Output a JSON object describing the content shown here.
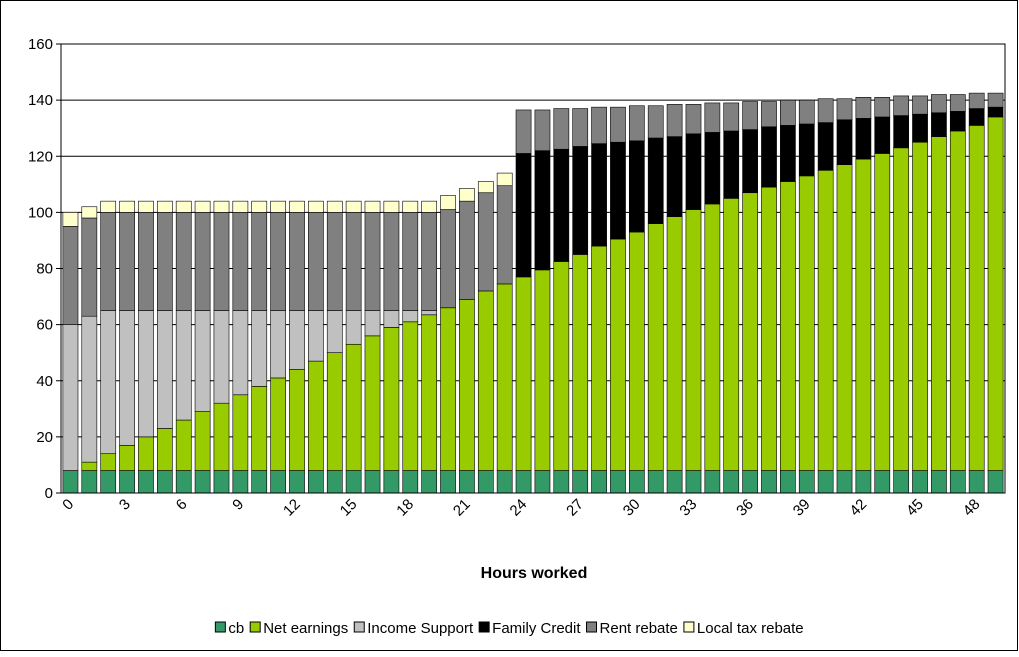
{
  "chart_data": {
    "type": "stacked-bar",
    "x_label": "Hours worked",
    "categories": [
      "0",
      null,
      null,
      "3",
      null,
      null,
      "6",
      null,
      null,
      "9",
      null,
      null,
      "12",
      null,
      null,
      "15",
      null,
      null,
      "18",
      null,
      null,
      "21",
      null,
      null,
      "24",
      null,
      null,
      "27",
      null,
      null,
      "30",
      null,
      null,
      "33",
      null,
      null,
      "36",
      null,
      null,
      "39",
      null,
      null,
      "42",
      null,
      null,
      "45",
      null,
      null,
      "48",
      null
    ],
    "ylim": [
      0,
      160
    ],
    "yticks": [
      0,
      20,
      40,
      60,
      80,
      100,
      120,
      140,
      160
    ],
    "grid": true,
    "legend": "bottom",
    "series": [
      {
        "name": "cb",
        "color": "#339966",
        "values": [
          8,
          8,
          8,
          8,
          8,
          8,
          8,
          8,
          8,
          8,
          8,
          8,
          8,
          8,
          8,
          8,
          8,
          8,
          8,
          8,
          8,
          8,
          8,
          8,
          8,
          8,
          8,
          8,
          8,
          8,
          8,
          8,
          8,
          8,
          8,
          8,
          8,
          8,
          8,
          8,
          8,
          8,
          8,
          8,
          8,
          8,
          8,
          8,
          8,
          8
        ]
      },
      {
        "name": "Net earnings",
        "color": "#99cc00",
        "values": [
          0,
          3,
          6,
          9,
          12,
          15,
          18,
          21,
          24,
          27,
          30,
          33,
          36,
          39,
          42,
          45,
          48,
          51,
          53,
          55.5,
          58,
          61,
          64,
          66.5,
          69,
          71.5,
          74.5,
          77,
          80,
          82.5,
          85,
          88,
          90.5,
          93,
          95,
          97,
          99,
          101,
          103,
          105,
          107,
          109,
          111,
          113,
          115,
          117,
          119,
          121,
          123,
          126
        ]
      },
      {
        "name": "Income Support",
        "color": "#c0c0c0",
        "values": [
          52,
          52,
          51,
          48,
          45,
          42,
          39,
          36,
          33,
          30,
          27,
          24,
          21,
          18,
          15,
          12,
          9,
          6,
          4,
          1.5,
          0,
          0,
          0,
          0,
          0,
          0,
          0,
          0,
          0,
          0,
          0,
          0,
          0,
          0,
          0,
          0,
          0,
          0,
          0,
          0,
          0,
          0,
          0,
          0,
          0,
          0,
          0,
          0,
          0,
          0
        ]
      },
      {
        "name": "Family Credit",
        "color": "#000000",
        "values": [
          0,
          0,
          0,
          0,
          0,
          0,
          0,
          0,
          0,
          0,
          0,
          0,
          0,
          0,
          0,
          0,
          0,
          0,
          0,
          0,
          0,
          0,
          0,
          0,
          44,
          42.5,
          40,
          38.5,
          36.5,
          34.5,
          32.5,
          30.5,
          28.5,
          27,
          25.5,
          24,
          22.5,
          21.5,
          20,
          18.5,
          17,
          16,
          14.5,
          13,
          11.5,
          10,
          8.5,
          7,
          6,
          3.5
        ]
      },
      {
        "name": "Rent rebate",
        "color": "#808080",
        "values": [
          35,
          35,
          35,
          35,
          35,
          35,
          35,
          35,
          35,
          35,
          35,
          35,
          35,
          35,
          35,
          35,
          35,
          35,
          35,
          35,
          35,
          35,
          35,
          35,
          15.5,
          14.5,
          14.5,
          13.5,
          13,
          12.5,
          12.5,
          11.5,
          11.5,
          10.5,
          10.5,
          10,
          10,
          9,
          9,
          8.5,
          8.5,
          7.5,
          7.5,
          7,
          7,
          6.5,
          6.5,
          6,
          5.5,
          5
        ]
      },
      {
        "name": "Local tax rebate",
        "color": "#ffffcc",
        "values": [
          5,
          4,
          4,
          4,
          4,
          4,
          4,
          4,
          4,
          4,
          4,
          4,
          4,
          4,
          4,
          4,
          4,
          4,
          4,
          4,
          5,
          4.5,
          4,
          4.5,
          0,
          0,
          0,
          0,
          0,
          0,
          0,
          0,
          0,
          0,
          0,
          0,
          0,
          0,
          0,
          0,
          0,
          0,
          0,
          0,
          0,
          0,
          0,
          0,
          0,
          0
        ]
      }
    ]
  }
}
